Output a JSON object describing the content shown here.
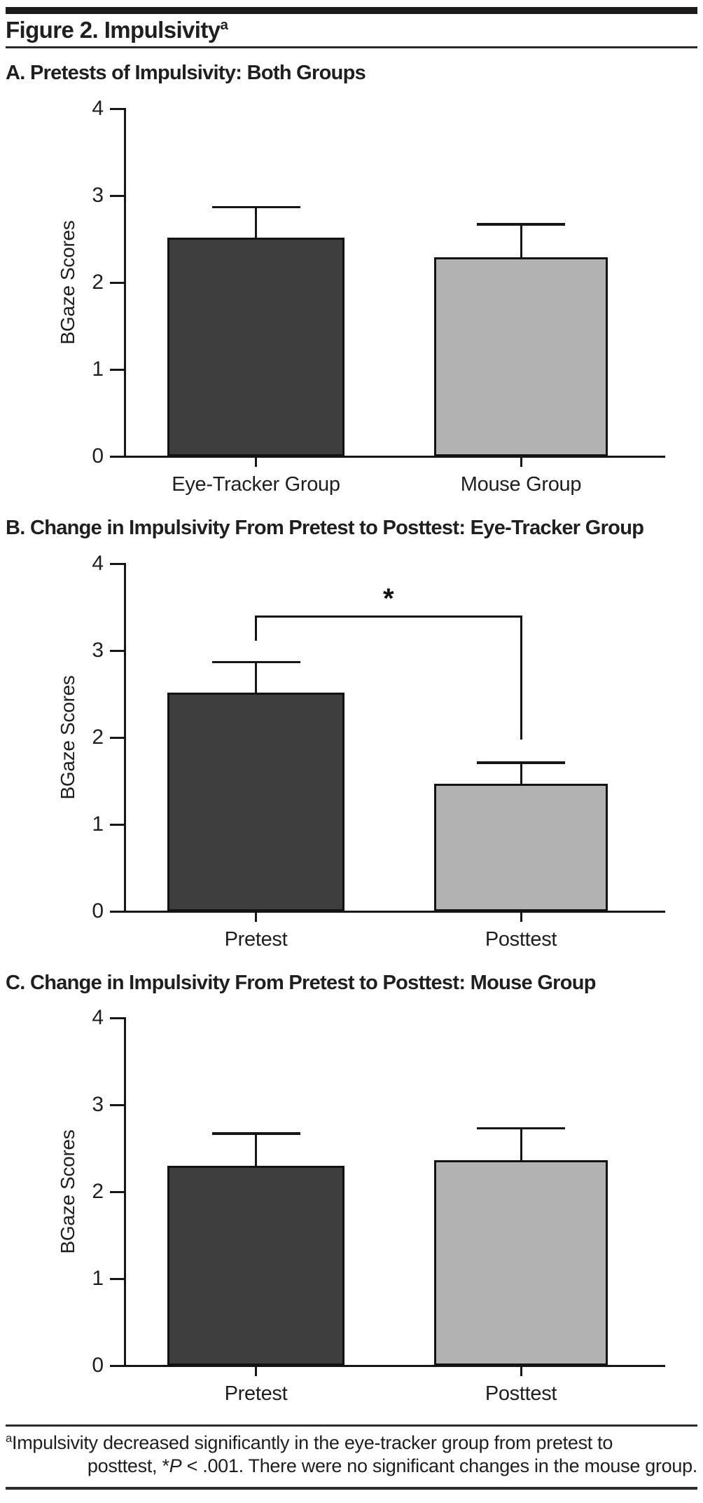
{
  "figure": {
    "top_title": "Figure 2. Impulsivity",
    "top_title_superscript": "a",
    "footnote": {
      "superscript": "a",
      "line1": "Impulsivity decreased significantly in the eye-tracker group from pretest to",
      "line2_prefix": "posttest, *",
      "line2_italic": "P",
      "line2_suffix": " < .001. There were no significant changes in the mouse group."
    }
  },
  "colors": {
    "dark_bar": "#3e3e3e",
    "light_bar": "#b2b2b2",
    "line": "#161616",
    "text": "#1f1f1f"
  },
  "chart_data": [
    {
      "id": "A",
      "type": "bar",
      "title": "A. Pretests of Impulsivity: Both Groups",
      "categories": [
        "Eye-Tracker Group",
        "Mouse Group"
      ],
      "values": [
        2.52,
        2.29
      ],
      "error_upper_tops": [
        2.87,
        2.67
      ],
      "bar_colors": [
        "#3e3e3e",
        "#b2b2b2"
      ],
      "ylabel": "BGaze Scores",
      "ylim": [
        0,
        4
      ],
      "yticks": [
        0,
        1,
        2,
        3,
        4
      ],
      "grid": false,
      "legend": null
    },
    {
      "id": "B",
      "type": "bar",
      "title": "B. Change in Impulsivity From Pretest to Posttest: Eye-Tracker Group",
      "categories": [
        "Pretest",
        "Posttest"
      ],
      "values": [
        2.52,
        1.47
      ],
      "error_upper_tops": [
        2.87,
        1.71
      ],
      "bar_colors": [
        "#3e3e3e",
        "#b2b2b2"
      ],
      "ylabel": "BGaze Scores",
      "ylim": [
        0,
        4
      ],
      "yticks": [
        0,
        1,
        2,
        3,
        4
      ],
      "grid": false,
      "legend": null,
      "significance": {
        "symbol": "*",
        "bracket_y": 3.39,
        "left_category": 0,
        "right_category": 1,
        "left_drop_to": 3.1,
        "right_drop_to": 1.96
      }
    },
    {
      "id": "C",
      "type": "bar",
      "title": "C. Change in Impulsivity From Pretest to Posttest: Mouse Group",
      "categories": [
        "Pretest",
        "Posttest"
      ],
      "values": [
        2.3,
        2.36
      ],
      "error_upper_tops": [
        2.67,
        2.73
      ],
      "bar_colors": [
        "#3e3e3e",
        "#b2b2b2"
      ],
      "ylabel": "BGaze Scores",
      "ylim": [
        0,
        4
      ],
      "yticks": [
        0,
        1,
        2,
        3,
        4
      ],
      "grid": false,
      "legend": null
    }
  ]
}
